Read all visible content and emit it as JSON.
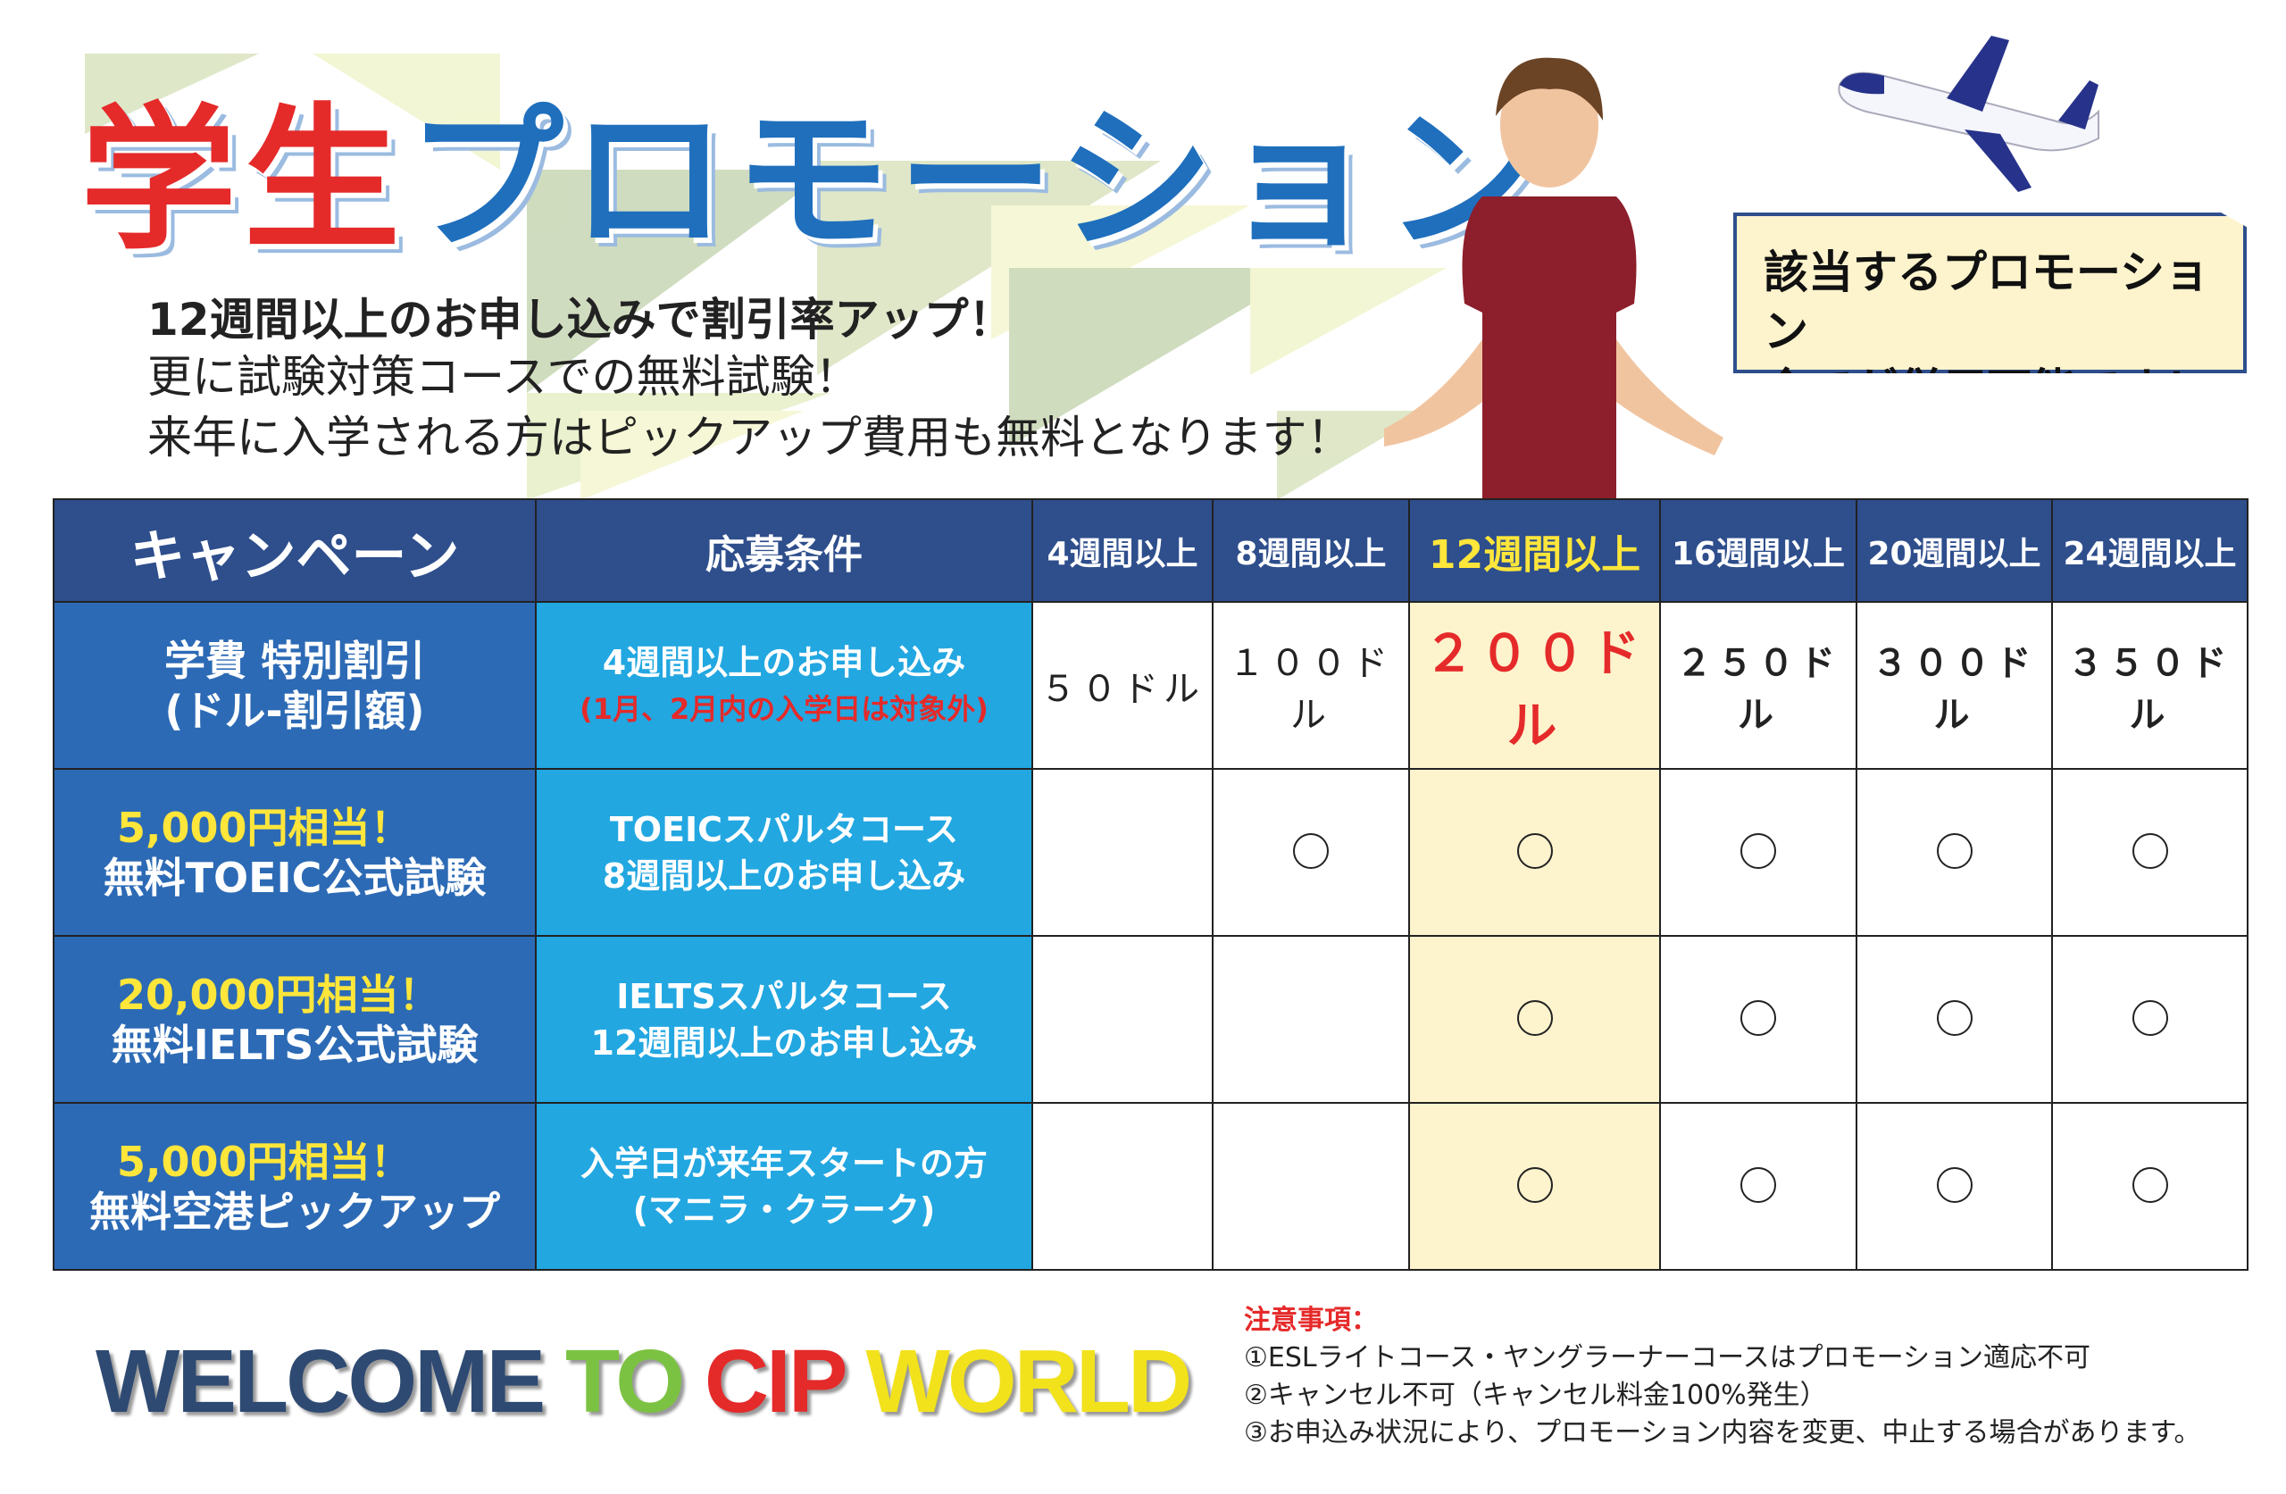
{
  "title": {
    "part1": "学生",
    "part2": "プロモーション"
  },
  "subtitles": [
    "12週間以上のお申し込みで割引率アップ！",
    "更に試験対策コースでの無料試験！",
    "来年に入学される方はピックアップ費用も無料となります！"
  ],
  "callout": {
    "line1": "該当するプロモーション",
    "line2": "全てが併用可能です！"
  },
  "table": {
    "headers": [
      "キャンペーン",
      "応募条件",
      "4週間以上",
      "8週間以上",
      "12週間以上",
      "16週間以上",
      "20週間以上",
      "24週間以上"
    ],
    "rows": [
      {
        "campaign_line1": "学費 特別割引",
        "campaign_line2": "(ドル-割引額)",
        "condition_line1": "4週間以上のお申し込み",
        "condition_note": "(1月、2月内の入学日は対象外)",
        "cells": [
          "５０ドル",
          "１００ドル",
          "２００ドル",
          "２５０ドル",
          "３００ドル",
          "３５０ドル"
        ]
      },
      {
        "campaign_line1": "5,000円相当！",
        "campaign_line2": "無料TOEIC公式試験",
        "condition_line1": "TOEICスパルタコース",
        "condition_line2": "8週間以上のお申し込み",
        "cells": [
          "",
          "○",
          "○",
          "○",
          "○",
          "○"
        ]
      },
      {
        "campaign_line1": "20,000円相当！",
        "campaign_line2": "無料IELTS公式試験",
        "condition_line1": "IELTSスパルタコース",
        "condition_line2": "12週間以上のお申し込み",
        "cells": [
          "",
          "",
          "○",
          "○",
          "○",
          "○"
        ]
      },
      {
        "campaign_line1": "5,000円相当！",
        "campaign_line2": "無料空港ピックアップ",
        "condition_line1": "入学日が来年スタートの方",
        "condition_line2": "(マニラ・クラーク)",
        "cells": [
          "",
          "",
          "○",
          "○",
          "○",
          "○"
        ]
      }
    ]
  },
  "welcome": {
    "w1": "WELCOME",
    "w2": "TO",
    "w3": "CIP",
    "w4": "WORLD"
  },
  "notes": {
    "heading": "注意事項：",
    "items": [
      "①ESLライトコース・ヤングラーナーコースはプロモーション適応不可",
      "②キャンセル不可（キャンセル料金100%発生）",
      "③お申込み状況により、プロモーション内容を変更、中止する場合があります。"
    ]
  },
  "colors": {
    "header": "#2e4e8c",
    "campaign": "#2c6ab5",
    "condition": "#22a7e1",
    "highlight": "#fdf3cd",
    "accent_red": "#e52a2a",
    "yellow": "#ffe63b"
  }
}
